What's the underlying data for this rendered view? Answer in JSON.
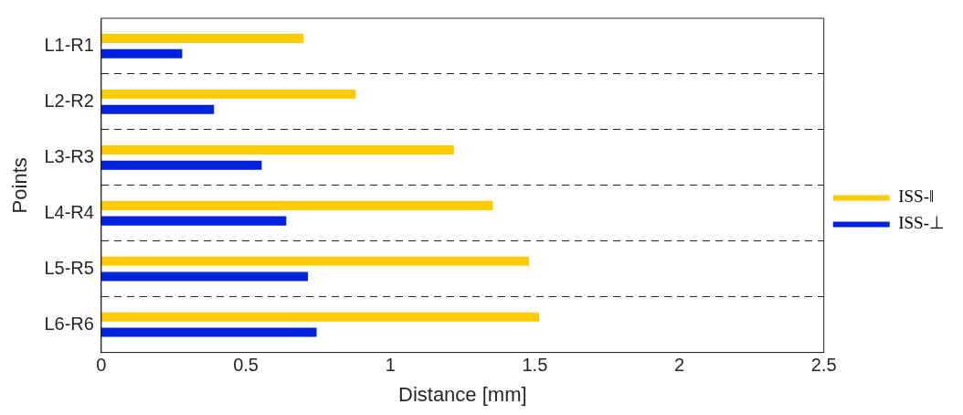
{
  "chart_data": {
    "type": "bar",
    "orientation": "horizontal",
    "xlabel": "Distance [mm]",
    "ylabel": "Points",
    "categories": [
      "L1-R1",
      "L2-R2",
      "L3-R3",
      "L4-R4",
      "L5-R5",
      "L6-R6"
    ],
    "series": [
      {
        "name": "ISS-‖",
        "color": "#ffcc00",
        "values": [
          0.7,
          0.88,
          1.22,
          1.355,
          1.48,
          1.515
        ]
      },
      {
        "name": "ISS-⊥",
        "color": "#0022dd",
        "values": [
          0.28,
          0.39,
          0.555,
          0.64,
          0.715,
          0.745
        ]
      }
    ],
    "xlim": [
      0,
      2.5
    ],
    "xticks": [
      0,
      0.5,
      1,
      1.5,
      2,
      2.5
    ],
    "grid": "y",
    "line_style": "dashed",
    "legend": "right"
  }
}
